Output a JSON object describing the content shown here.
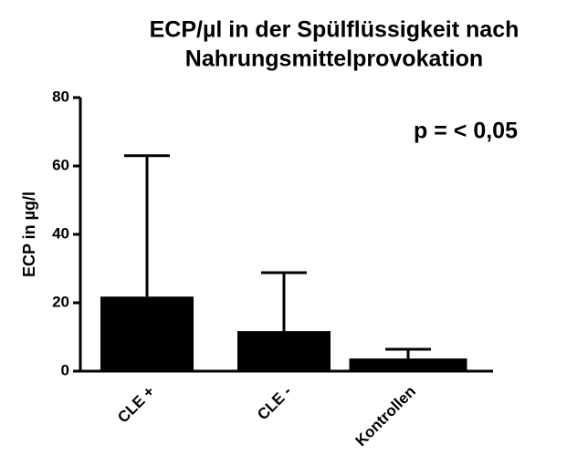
{
  "chart_data": {
    "type": "bar",
    "title": [
      "ECP/µl in der Spülflüssigkeit nach",
      "Nahrungsmittelprovokation"
    ],
    "y_label": "ECP in µg/l",
    "annotation": "p = < 0,05",
    "categories": [
      "CLE +",
      "CLE -",
      "Kontrollen"
    ],
    "values": [
      21.8,
      11.7,
      3.7
    ],
    "errors": [
      41.2,
      17.1,
      2.7
    ],
    "color": "#000000",
    "ylim": [
      0,
      80
    ],
    "yticks": [
      0,
      20,
      40,
      60,
      80
    ],
    "grid": false
  }
}
